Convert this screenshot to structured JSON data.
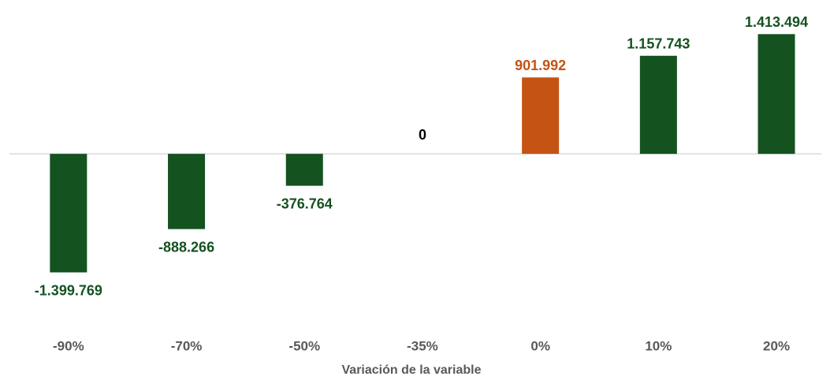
{
  "chart_data": {
    "type": "bar",
    "x_label": "Variación de la variable",
    "categories": [
      "-90%",
      "-70%",
      "-50%",
      "-35%",
      "0%",
      "10%",
      "20%"
    ],
    "values": [
      -1399769,
      -888266,
      -376764,
      0,
      901992,
      1157743,
      1413494
    ],
    "value_labels": [
      "-1.399.769",
      "-888.266",
      "-376.764",
      "0",
      "901.992",
      "1.157.743",
      "1.413.494"
    ],
    "colors": [
      "#145220",
      "#145220",
      "#145220",
      "#145220",
      "#c55314",
      "#145220",
      "#145220"
    ],
    "value_label_colors": [
      "#145220",
      "#145220",
      "#145220",
      "#000000",
      "#c55314",
      "#145220",
      "#145220"
    ],
    "ylim": [
      -2000000,
      1500000
    ]
  }
}
